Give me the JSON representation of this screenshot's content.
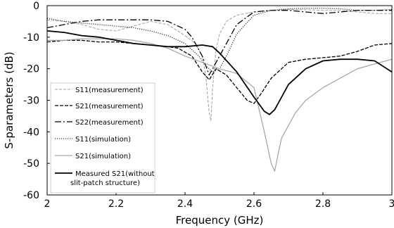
{
  "chart_data": {
    "type": "line",
    "title": "",
    "xlabel": "Frequency (GHz)",
    "ylabel": "S-parameters  (dB)",
    "xlim": [
      2,
      3
    ],
    "ylim": [
      -60,
      0
    ],
    "xticks": [
      "2",
      "2.2",
      "2.4",
      "2.6",
      "2.8",
      "3"
    ],
    "yticks": [
      "0",
      "-10",
      "-20",
      "-30",
      "-40",
      "-50",
      "-60"
    ],
    "grid": false,
    "legend_position": "bottom-left",
    "series": [
      {
        "name": "S11(measurement)",
        "color": "#a0a0a0",
        "dash": "4,2",
        "width": 1.0,
        "x": [
          2.0,
          2.05,
          2.1,
          2.15,
          2.2,
          2.25,
          2.3,
          2.35,
          2.4,
          2.43,
          2.45,
          2.46,
          2.47,
          2.475,
          2.48,
          2.49,
          2.5,
          2.52,
          2.55,
          2.6,
          2.65,
          2.7,
          2.75,
          2.8,
          2.85,
          2.9,
          2.95,
          3.0
        ],
        "y": [
          -4.5,
          -5.0,
          -6.0,
          -7.5,
          -8.0,
          -6.5,
          -5.0,
          -6.0,
          -9.5,
          -12.0,
          -16.0,
          -22.0,
          -34.0,
          -36.5,
          -26.0,
          -14.0,
          -9.0,
          -5.0,
          -3.0,
          -2.0,
          -1.5,
          -1.2,
          -1.3,
          -1.5,
          -1.5,
          -2.0,
          -2.5,
          -2.5
        ]
      },
      {
        "name": "S21(measurement)",
        "color": "#000000",
        "dash": "5,2",
        "width": 1.3,
        "x": [
          2.0,
          2.05,
          2.1,
          2.15,
          2.2,
          2.25,
          2.3,
          2.35,
          2.38,
          2.42,
          2.45,
          2.47,
          2.49,
          2.52,
          2.55,
          2.58,
          2.6,
          2.62,
          2.65,
          2.68,
          2.7,
          2.75,
          2.8,
          2.85,
          2.9,
          2.95,
          3.0
        ],
        "y": [
          -11.5,
          -11.0,
          -11.0,
          -11.5,
          -11.5,
          -12.0,
          -12.5,
          -13.0,
          -13.5,
          -16.0,
          -21.0,
          -23.5,
          -20.0,
          -22.0,
          -26.0,
          -30.0,
          -31.0,
          -28.0,
          -23.0,
          -20.0,
          -18.0,
          -17.0,
          -16.5,
          -16.0,
          -14.5,
          -12.5,
          -12.0
        ]
      },
      {
        "name": "S22(measurement)",
        "color": "#000000",
        "dash": "9,3,2,3",
        "width": 1.3,
        "x": [
          2.0,
          2.05,
          2.1,
          2.15,
          2.2,
          2.25,
          2.3,
          2.35,
          2.4,
          2.42,
          2.45,
          2.47,
          2.48,
          2.5,
          2.52,
          2.55,
          2.6,
          2.65,
          2.7,
          2.75,
          2.8,
          2.85,
          2.9,
          2.95,
          3.0
        ],
        "y": [
          -7.0,
          -6.0,
          -5.0,
          -4.5,
          -4.5,
          -4.5,
          -4.5,
          -5.0,
          -7.5,
          -10.0,
          -16.0,
          -22.0,
          -20.0,
          -16.0,
          -12.0,
          -6.0,
          -2.0,
          -1.5,
          -1.5,
          -2.0,
          -2.5,
          -2.0,
          -1.5,
          -1.5,
          -1.5
        ]
      },
      {
        "name": "S11(simulation)",
        "color": "#333333",
        "dash": "1.2,1.8",
        "width": 1.3,
        "x": [
          2.0,
          2.05,
          2.1,
          2.15,
          2.2,
          2.25,
          2.3,
          2.35,
          2.4,
          2.42,
          2.44,
          2.46,
          2.48,
          2.5,
          2.52,
          2.55,
          2.6,
          2.65,
          2.7,
          2.75,
          2.8,
          2.85,
          2.9,
          2.95,
          3.0
        ],
        "y": [
          -4.0,
          -5.0,
          -5.5,
          -6.0,
          -6.5,
          -7.0,
          -8.0,
          -9.5,
          -12.0,
          -14.0,
          -16.0,
          -19.0,
          -21.0,
          -20.0,
          -16.0,
          -9.0,
          -3.0,
          -1.5,
          -1.0,
          -0.8,
          -0.8,
          -1.0,
          -1.5,
          -1.5,
          -1.2
        ]
      },
      {
        "name": "S21(simulation)",
        "color": "#a8a8a8",
        "dash": "",
        "width": 1.3,
        "x": [
          2.0,
          2.05,
          2.1,
          2.15,
          2.2,
          2.25,
          2.3,
          2.35,
          2.4,
          2.45,
          2.5,
          2.55,
          2.6,
          2.63,
          2.65,
          2.66,
          2.67,
          2.68,
          2.7,
          2.72,
          2.75,
          2.8,
          2.85,
          2.9,
          2.95,
          3.0
        ],
        "y": [
          -11.0,
          -11.0,
          -10.5,
          -10.5,
          -10.5,
          -11.0,
          -12.0,
          -13.5,
          -16.0,
          -18.0,
          -20.0,
          -21.5,
          -26.0,
          -40.0,
          -50.0,
          -52.5,
          -47.0,
          -42.0,
          -38.0,
          -34.0,
          -30.0,
          -26.0,
          -23.0,
          -20.0,
          -18.5,
          -17.0
        ]
      },
      {
        "name": "Measured S21(without slit-patch structure)",
        "color": "#000000",
        "dash": "",
        "width": 1.8,
        "x": [
          2.0,
          2.05,
          2.1,
          2.15,
          2.2,
          2.25,
          2.3,
          2.35,
          2.4,
          2.45,
          2.48,
          2.5,
          2.55,
          2.6,
          2.63,
          2.645,
          2.66,
          2.68,
          2.7,
          2.75,
          2.8,
          2.85,
          2.9,
          2.95,
          3.0
        ],
        "y": [
          -8.0,
          -8.5,
          -9.5,
          -10.0,
          -11.0,
          -12.0,
          -12.5,
          -13.0,
          -13.0,
          -12.5,
          -13.0,
          -15.0,
          -21.0,
          -29.0,
          -33.5,
          -34.5,
          -33.0,
          -29.0,
          -25.0,
          -20.0,
          -17.5,
          -17.0,
          -17.0,
          -17.5,
          -21.0
        ]
      }
    ]
  }
}
